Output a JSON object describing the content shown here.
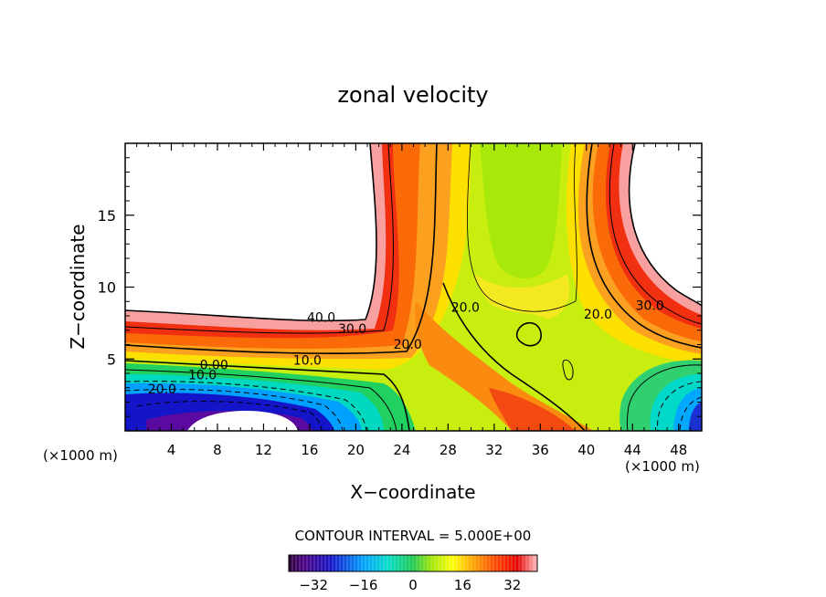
{
  "chart_data": {
    "type": "heatmap",
    "title": "zonal velocity",
    "xlabel": "X−coordinate",
    "ylabel": "Z−coordinate",
    "x_unit_left": "(×1000 m)",
    "x_unit_right": "(×1000 m)",
    "xlim": [
      0,
      50
    ],
    "ylim": [
      0,
      20
    ],
    "x_ticks": [
      4,
      8,
      12,
      16,
      20,
      24,
      28,
      32,
      36,
      40,
      44,
      48
    ],
    "y_ticks": [
      5,
      10,
      15
    ],
    "contour_interval_text": "CONTOUR INTERVAL = 5.000E+00",
    "colorbar": {
      "range": [
        -40,
        40
      ],
      "ticks": [
        -32,
        -16,
        0,
        16,
        32
      ],
      "tick_labels": [
        "−32",
        "−16",
        "0",
        "16",
        "32"
      ]
    },
    "contour_labels": [
      {
        "text": "40.0",
        "x": 17.0,
        "z": 7.6
      },
      {
        "text": "30.0",
        "x": 19.7,
        "z": 6.8
      },
      {
        "text": "20.0",
        "x": 24.5,
        "z": 5.7
      },
      {
        "text": "10.0",
        "x": 15.8,
        "z": 4.6
      },
      {
        "text": "0.00",
        "x": 7.7,
        "z": 4.3
      },
      {
        "text": "10.0",
        "x": 6.7,
        "z": 3.6
      },
      {
        "text": "20.0",
        "x": 3.2,
        "z": 2.6
      },
      {
        "text": "20.0",
        "x": 29.5,
        "z": 8.3
      },
      {
        "text": "20.0",
        "x": 41.0,
        "z": 7.8
      },
      {
        "text": "30.0",
        "x": 45.5,
        "z": 8.4
      }
    ]
  }
}
